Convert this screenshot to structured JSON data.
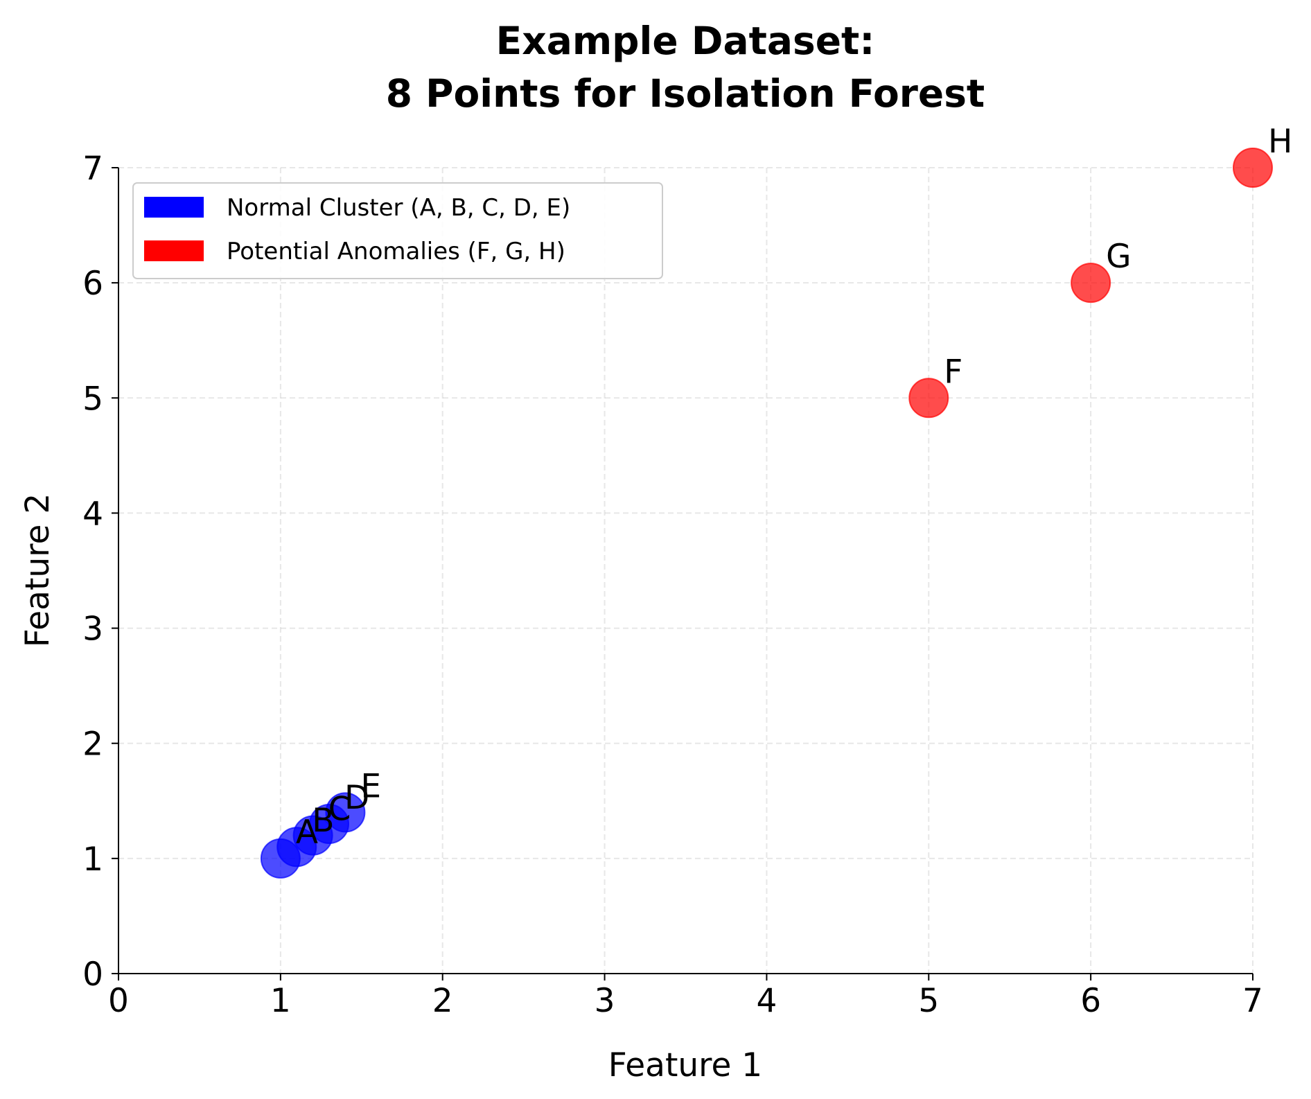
{
  "chart_data": {
    "type": "scatter",
    "title": [
      "Example Dataset:",
      "8 Points for Isolation Forest"
    ],
    "xlabel": "Feature 1",
    "ylabel": "Feature 2",
    "xlim": [
      0,
      7
    ],
    "ylim": [
      0,
      7
    ],
    "xticks": [
      "0",
      "1",
      "2",
      "3",
      "4",
      "5",
      "6",
      "7"
    ],
    "yticks": [
      "0",
      "1",
      "2",
      "3",
      "4",
      "5",
      "6",
      "7"
    ],
    "grid": true,
    "legend_position": "top-left",
    "series": [
      {
        "name": "Normal Cluster (A, B, C, D, E)",
        "color": "#0000ff",
        "points": [
          {
            "label": "A",
            "x": 1.0,
            "y": 1.0
          },
          {
            "label": "B",
            "x": 1.1,
            "y": 1.1
          },
          {
            "label": "C",
            "x": 1.2,
            "y": 1.2
          },
          {
            "label": "D",
            "x": 1.3,
            "y": 1.3
          },
          {
            "label": "E",
            "x": 1.4,
            "y": 1.4
          }
        ]
      },
      {
        "name": "Potential Anomalies (F, G, H)",
        "color": "#ff0000",
        "points": [
          {
            "label": "F",
            "x": 5,
            "y": 5
          },
          {
            "label": "G",
            "x": 6,
            "y": 6
          },
          {
            "label": "H",
            "x": 7,
            "y": 7
          }
        ]
      }
    ]
  }
}
